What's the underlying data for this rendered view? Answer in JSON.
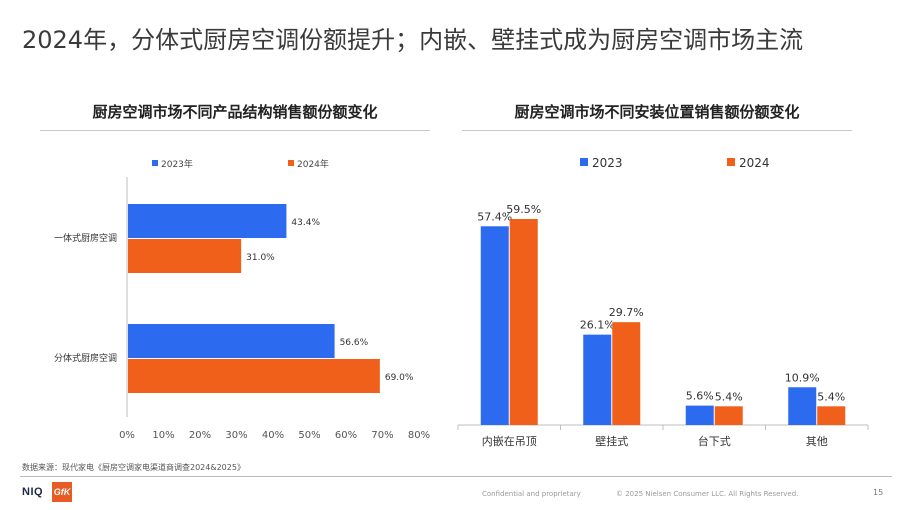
{
  "page": {
    "title": "2024年，分体式厨房空调份额提升；内嵌、壁挂式成为厨房空调市场主流",
    "source": "数据来源：现代家电《厨房空调家电渠道商调查2024&2025》",
    "footer": {
      "confidential": "Confidential and proprietary",
      "copyright": "© 2025 Nielsen Consumer LLC. All Rights Reserved.",
      "page_number": "15"
    },
    "logos": {
      "niq": "NIQ",
      "gfk": "GfK"
    }
  },
  "colors": {
    "series_2023": "#2c6bef",
    "series_2024": "#f0601a"
  },
  "chart_data": [
    {
      "type": "bar",
      "orientation": "horizontal",
      "title": "厨房空调市场不同产品结构销售额份额变化",
      "categories": [
        "一体式厨房空调",
        "分体式厨房空调"
      ],
      "series": [
        {
          "name": "2023年",
          "values": [
            43.4,
            56.6
          ],
          "labels": [
            "43.4%",
            "56.6%"
          ]
        },
        {
          "name": "2024年",
          "values": [
            31.0,
            69.0
          ],
          "labels": [
            "31.0%",
            "69.0%"
          ]
        }
      ],
      "xlim": [
        0,
        80
      ],
      "xticks": [
        0,
        10,
        20,
        30,
        40,
        50,
        60,
        70,
        80
      ],
      "xtick_labels": [
        "0%",
        "10%",
        "20%",
        "30%",
        "40%",
        "50%",
        "60%",
        "70%",
        "80%"
      ],
      "legend": "top",
      "grid": false
    },
    {
      "type": "bar",
      "orientation": "vertical",
      "title": "厨房空调市场不同安装位置销售额份额变化",
      "categories": [
        "内嵌在吊顶",
        "壁挂式",
        "台下式",
        "其他"
      ],
      "series": [
        {
          "name": "2023",
          "values": [
            57.4,
            26.1,
            5.6,
            10.9
          ],
          "labels": [
            "57.4%",
            "26.1%",
            "5.6%",
            "10.9%"
          ]
        },
        {
          "name": "2024",
          "values": [
            59.5,
            29.7,
            5.4,
            5.4
          ],
          "labels": [
            "59.5%",
            "29.7%",
            "5.4%",
            "5.4%"
          ]
        }
      ],
      "ylim": [
        0,
        70
      ],
      "legend": "top",
      "grid": false
    }
  ]
}
